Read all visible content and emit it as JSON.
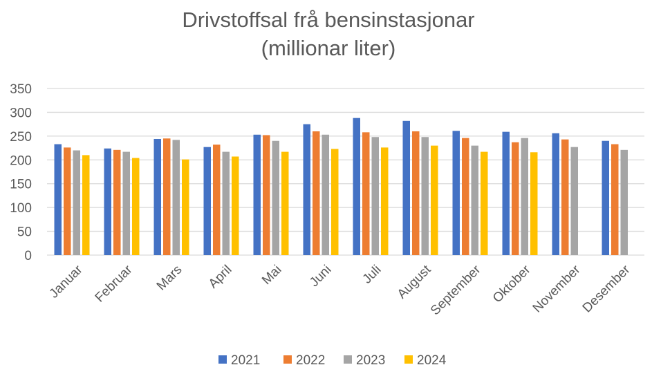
{
  "chart_data": {
    "type": "bar",
    "title_lines": [
      "Drivstoffsal frå bensinstasjonar",
      "(millionar liter)"
    ],
    "xlabel": "",
    "ylabel": "",
    "ylim": [
      0,
      350
    ],
    "yticks": [
      0,
      50,
      100,
      150,
      200,
      250,
      300,
      350
    ],
    "grid": true,
    "legend_position": "bottom",
    "categories": [
      "Januar",
      "Februar",
      "Mars",
      "April",
      "Mai",
      "Juni",
      "Juli",
      "August",
      "September",
      "Oktober",
      "November",
      "Desember"
    ],
    "series": [
      {
        "name": "2021",
        "color": "#4472C4",
        "values": [
          233,
          224,
          244,
          227,
          253,
          275,
          288,
          282,
          261,
          259,
          256,
          240
        ]
      },
      {
        "name": "2022",
        "color": "#ED7D31",
        "values": [
          226,
          221,
          245,
          232,
          252,
          260,
          258,
          260,
          246,
          237,
          243,
          233
        ]
      },
      {
        "name": "2023",
        "color": "#A5A5A5",
        "values": [
          220,
          217,
          242,
          217,
          240,
          253,
          248,
          248,
          230,
          246,
          227,
          221
        ]
      },
      {
        "name": "2024",
        "color": "#FFC000",
        "values": [
          210,
          204,
          201,
          207,
          217,
          223,
          226,
          230,
          217,
          216,
          null,
          null
        ]
      }
    ]
  }
}
